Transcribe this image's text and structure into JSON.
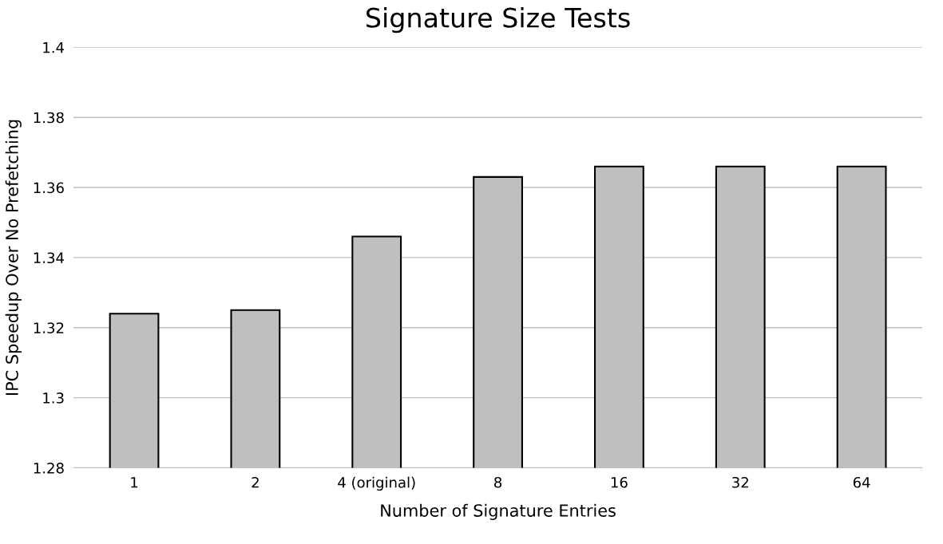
{
  "chart_data": {
    "type": "bar",
    "title": "Signature Size Tests",
    "xlabel": "Number of Signature Entries",
    "ylabel": "IPC Speedup Over No Prefetching",
    "categories": [
      "1",
      "2",
      "4 (original)",
      "8",
      "16",
      "32",
      "64"
    ],
    "values": [
      1.324,
      1.325,
      1.346,
      1.363,
      1.366,
      1.366,
      1.366
    ],
    "color": "#bfbfbf",
    "ylim": [
      1.28,
      1.4
    ],
    "yticks": [
      {
        "value": 1.28,
        "label": "1.28"
      },
      {
        "value": 1.3,
        "label": "1.3"
      },
      {
        "value": 1.32,
        "label": "1.32"
      },
      {
        "value": 1.34,
        "label": "1.34"
      },
      {
        "value": 1.36,
        "label": "1.36"
      },
      {
        "value": 1.38,
        "label": "1.38"
      },
      {
        "value": 1.4,
        "label": "1.4"
      }
    ],
    "grid": "y"
  }
}
